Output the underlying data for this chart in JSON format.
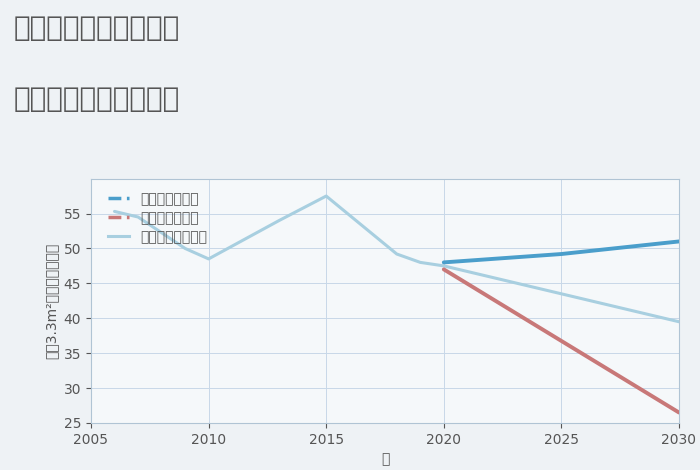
{
  "title_line1": "三重県鈴鹿市和泉町の",
  "title_line2": "中古戸建ての価格推移",
  "xlabel": "年",
  "ylabel_parts": [
    "坪（3.3m²）単価（万円）"
  ],
  "background_color": "#eef2f5",
  "plot_bg_color": "#f5f8fa",
  "grid_color": "#c8d8e8",
  "good_scenario": {
    "x": [
      2020,
      2025,
      2030
    ],
    "y": [
      48.0,
      49.2,
      51.0
    ],
    "color": "#4a9ecb",
    "label": "グッドシナリオ",
    "linewidth": 2.8
  },
  "bad_scenario": {
    "x": [
      2020,
      2030
    ],
    "y": [
      47.0,
      26.5
    ],
    "color": "#c87878",
    "label": "バッドシナリオ",
    "linewidth": 2.8
  },
  "normal_scenario": {
    "x": [
      2006,
      2007,
      2009,
      2010,
      2013,
      2015,
      2018,
      2019,
      2020,
      2025,
      2030
    ],
    "y": [
      55.3,
      54.5,
      50.0,
      48.5,
      54.0,
      57.5,
      49.2,
      48.0,
      47.5,
      43.5,
      39.5
    ],
    "color": "#a8cfe0",
    "label": "ノーマルシナリオ",
    "linewidth": 2.2
  },
  "xlim": [
    2005,
    2030
  ],
  "ylim": [
    25,
    60
  ],
  "yticks": [
    25,
    30,
    35,
    40,
    45,
    50,
    55
  ],
  "xticks": [
    2005,
    2010,
    2015,
    2020,
    2025,
    2030
  ],
  "title_color": "#555555",
  "title_fontsize": 20,
  "axis_label_fontsize": 10,
  "tick_fontsize": 10,
  "legend_fontsize": 10
}
